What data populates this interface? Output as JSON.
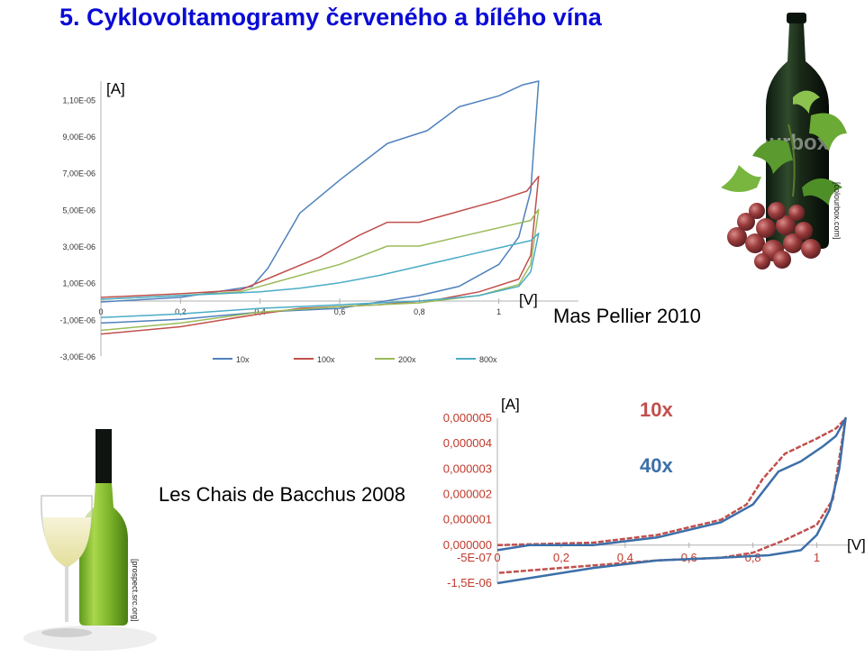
{
  "title": "5. Cyklovoltamogramy červeného a bílého vína",
  "red_wine": {
    "label": "Mas Pellier 2010",
    "credit": "[colourbox.com]",
    "watermark": "Colourbox"
  },
  "white_wine": {
    "label": "Les Chais de Bacchus 2008",
    "credit": "[prospect.src.org]"
  },
  "chart_data": [
    {
      "type": "line",
      "title": "",
      "xlabel": "[V]",
      "ylabel": "[A]",
      "xlim": [
        0,
        1.2
      ],
      "ylim": [
        -3e-06,
        1.2e-05
      ],
      "x_ticks": [
        "0",
        "0,2",
        "0,4",
        "0,6",
        "0,8",
        "1"
      ],
      "y_ticks": [
        "1,10E-05",
        "9,00E-06",
        "7,00E-06",
        "5,00E-06",
        "3,00E-06",
        "1,00E-06",
        "-1,00E-06",
        "-3,00E-06"
      ],
      "legend_position": "bottom",
      "series": [
        {
          "name": "10x",
          "color": "#4f81bd",
          "forward": [
            [
              0,
              -5e-08
            ],
            [
              0.2,
              2e-07
            ],
            [
              0.38,
              8e-07
            ],
            [
              0.42,
              1.8e-06
            ],
            [
              0.5,
              4.8e-06
            ],
            [
              0.6,
              6.6e-06
            ],
            [
              0.72,
              8.6e-06
            ],
            [
              0.82,
              9.3e-06
            ],
            [
              0.9,
              1.06e-05
            ],
            [
              1.0,
              1.12e-05
            ],
            [
              1.06,
              1.18e-05
            ],
            [
              1.1,
              1.2e-05
            ]
          ],
          "reverse": [
            [
              1.1,
              1.2e-05
            ],
            [
              1.08,
              6e-06
            ],
            [
              1.05,
              3.5e-06
            ],
            [
              1.0,
              2e-06
            ],
            [
              0.9,
              8e-07
            ],
            [
              0.8,
              3e-07
            ],
            [
              0.6,
              -4e-07
            ],
            [
              0.4,
              -6e-07
            ],
            [
              0.2,
              -1e-06
            ],
            [
              0,
              -1.2e-06
            ]
          ]
        },
        {
          "name": "100x",
          "color": "#c0504d",
          "forward": [
            [
              0,
              2e-07
            ],
            [
              0.2,
              4e-07
            ],
            [
              0.35,
              6e-07
            ],
            [
              0.45,
              1.5e-06
            ],
            [
              0.55,
              2.4e-06
            ],
            [
              0.65,
              3.6e-06
            ],
            [
              0.72,
              4.3e-06
            ],
            [
              0.8,
              4.3e-06
            ],
            [
              0.9,
              4.9e-06
            ],
            [
              1.0,
              5.5e-06
            ],
            [
              1.07,
              6e-06
            ],
            [
              1.1,
              6.8e-06
            ]
          ],
          "reverse": [
            [
              1.1,
              6.8e-06
            ],
            [
              1.08,
              2.5e-06
            ],
            [
              1.05,
              1.2e-06
            ],
            [
              0.95,
              5e-07
            ],
            [
              0.85,
              1e-07
            ],
            [
              0.7,
              -2e-07
            ],
            [
              0.5,
              -4e-07
            ],
            [
              0.4,
              -7e-07
            ],
            [
              0.2,
              -1.4e-06
            ],
            [
              0,
              -1.8e-06
            ]
          ]
        },
        {
          "name": "200x",
          "color": "#9bbb59",
          "forward": [
            [
              0,
              1e-07
            ],
            [
              0.2,
              3e-07
            ],
            [
              0.35,
              5e-07
            ],
            [
              0.45,
              1.1e-06
            ],
            [
              0.6,
              2e-06
            ],
            [
              0.72,
              3e-06
            ],
            [
              0.8,
              3e-06
            ],
            [
              0.9,
              3.5e-06
            ],
            [
              1.0,
              4e-06
            ],
            [
              1.08,
              4.4e-06
            ],
            [
              1.1,
              5e-06
            ]
          ],
          "reverse": [
            [
              1.1,
              5e-06
            ],
            [
              1.08,
              2e-06
            ],
            [
              1.05,
              9e-07
            ],
            [
              0.95,
              3e-07
            ],
            [
              0.8,
              -1e-07
            ],
            [
              0.6,
              -3e-07
            ],
            [
              0.4,
              -6e-07
            ],
            [
              0.2,
              -1.2e-06
            ],
            [
              0,
              -1.6e-06
            ]
          ]
        },
        {
          "name": "800x",
          "color": "#4bacc6",
          "forward": [
            [
              0,
              1e-07
            ],
            [
              0.2,
              3e-07
            ],
            [
              0.4,
              5e-07
            ],
            [
              0.5,
              7e-07
            ],
            [
              0.6,
              1e-06
            ],
            [
              0.7,
              1.4e-06
            ],
            [
              0.8,
              1.9e-06
            ],
            [
              0.9,
              2.4e-06
            ],
            [
              1.0,
              2.9e-06
            ],
            [
              1.08,
              3.3e-06
            ],
            [
              1.1,
              3.7e-06
            ]
          ],
          "reverse": [
            [
              1.1,
              3.7e-06
            ],
            [
              1.08,
              1.6e-06
            ],
            [
              1.05,
              8e-07
            ],
            [
              0.95,
              3e-07
            ],
            [
              0.8,
              0
            ],
            [
              0.6,
              -2e-07
            ],
            [
              0.4,
              -4e-07
            ],
            [
              0.2,
              -7e-07
            ],
            [
              0,
              -9e-07
            ]
          ]
        }
      ]
    },
    {
      "type": "line",
      "title": "",
      "xlabel": "[V]",
      "ylabel": "[A]",
      "xlim": [
        0,
        1.1
      ],
      "ylim": [
        -1.5e-06,
        5e-06
      ],
      "x_ticks": [
        "0",
        "0,2",
        "0,4",
        "0,6",
        "0,8",
        "1"
      ],
      "y_ticks": [
        "0,000005",
        "0,000004",
        "0,000003",
        "0,000002",
        "0,000001",
        "0,000000",
        "-5E-07",
        "-1,5E-06"
      ],
      "series": [
        {
          "name": "10x",
          "color": "#c0504d",
          "forward": [
            [
              0,
              0
            ],
            [
              0.3,
              1e-07
            ],
            [
              0.5,
              4e-07
            ],
            [
              0.7,
              1e-06
            ],
            [
              0.78,
              1.6e-06
            ],
            [
              0.83,
              2.6e-06
            ],
            [
              0.9,
              3.6e-06
            ],
            [
              1.0,
              4.2e-06
            ],
            [
              1.06,
              4.6e-06
            ],
            [
              1.09,
              5e-06
            ]
          ],
          "reverse": [
            [
              1.09,
              5e-06
            ],
            [
              1.05,
              1.8e-06
            ],
            [
              1.0,
              8e-07
            ],
            [
              0.9,
              2e-07
            ],
            [
              0.8,
              -3e-07
            ],
            [
              0.7,
              -5e-07
            ],
            [
              0.5,
              -6e-07
            ],
            [
              0.3,
              -8e-07
            ],
            [
              0,
              -1.1e-06
            ]
          ]
        },
        {
          "name": "40x",
          "color": "#3c6fa8",
          "forward": [
            [
              0,
              -2e-07
            ],
            [
              0.1,
              0
            ],
            [
              0.3,
              0
            ],
            [
              0.5,
              3e-07
            ],
            [
              0.7,
              9e-07
            ],
            [
              0.8,
              1.6e-06
            ],
            [
              0.88,
              2.9e-06
            ],
            [
              0.95,
              3.3e-06
            ],
            [
              1.02,
              3.9e-06
            ],
            [
              1.06,
              4.3e-06
            ],
            [
              1.09,
              5e-06
            ]
          ],
          "reverse": [
            [
              1.09,
              5e-06
            ],
            [
              1.07,
              3e-06
            ],
            [
              1.04,
              1.4e-06
            ],
            [
              1.0,
              4e-07
            ],
            [
              0.95,
              -2e-07
            ],
            [
              0.85,
              -4e-07
            ],
            [
              0.7,
              -5e-07
            ],
            [
              0.5,
              -6e-07
            ],
            [
              0.3,
              -9e-07
            ],
            [
              0,
              -1.5e-06
            ]
          ]
        }
      ]
    }
  ]
}
